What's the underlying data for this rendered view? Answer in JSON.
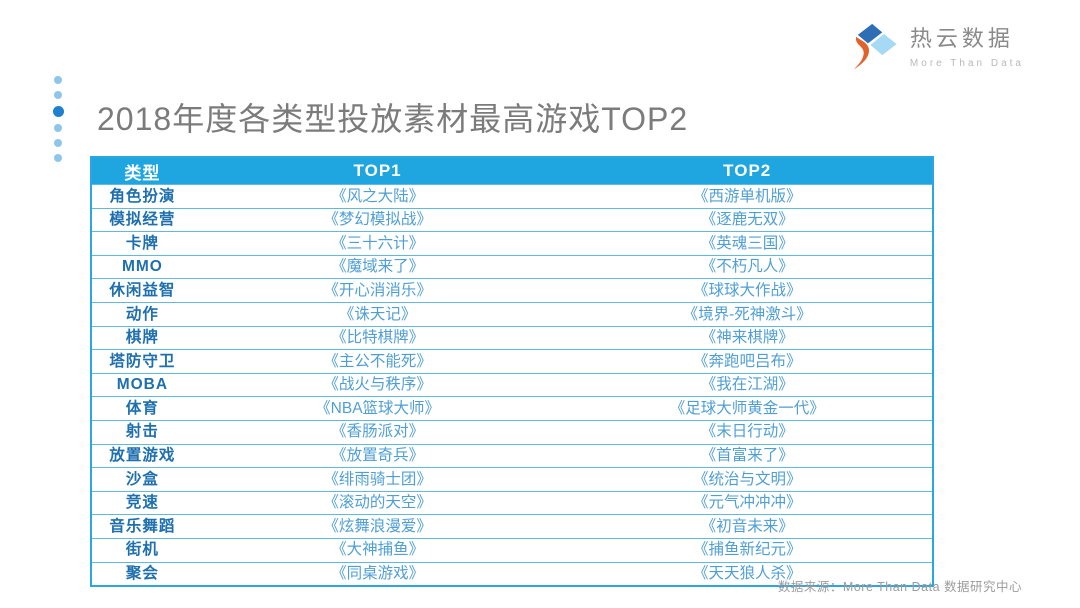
{
  "logo": {
    "name": "热云数据",
    "tagline": "More Than Data"
  },
  "title": "2018年度各类型投放素材最高游戏TOP2",
  "table": {
    "headers": [
      "类型",
      "TOP1",
      "TOP2"
    ],
    "rows": [
      [
        "角色扮演",
        "《风之大陆》",
        "《西游单机版》"
      ],
      [
        "模拟经营",
        "《梦幻模拟战》",
        "《逐鹿无双》"
      ],
      [
        "卡牌",
        "《三十六计》",
        "《英魂三国》"
      ],
      [
        "MMO",
        "《魔域来了》",
        "《不朽凡人》"
      ],
      [
        "休闲益智",
        "《开心消消乐》",
        "《球球大作战》"
      ],
      [
        "动作",
        "《诛天记》",
        "《境界-死神激斗》"
      ],
      [
        "棋牌",
        "《比特棋牌》",
        "《神来棋牌》"
      ],
      [
        "塔防守卫",
        "《主公不能死》",
        "《奔跑吧吕布》"
      ],
      [
        "MOBA",
        "《战火与秩序》",
        "《我在江湖》"
      ],
      [
        "体育",
        "《NBA篮球大师》",
        "《足球大师黄金一代》"
      ],
      [
        "射击",
        "《香肠派对》",
        "《末日行动》"
      ],
      [
        "放置游戏",
        "《放置奇兵》",
        "《首富来了》"
      ],
      [
        "沙盒",
        "《绯雨骑士团》",
        "《统治与文明》"
      ],
      [
        "竞速",
        "《滚动的天空》",
        "《元气冲冲冲》"
      ],
      [
        "音乐舞蹈",
        "《炫舞浪漫爱》",
        "《初音未来》"
      ],
      [
        "街机",
        "《大神捕鱼》",
        "《捕鱼新纪元》"
      ],
      [
        "聚会",
        "《同桌游戏》",
        "《天天狼人杀》"
      ]
    ]
  },
  "footer": {
    "source": "数据来源：More Than Data 数据研究中心"
  },
  "colors": {
    "header_bg": "#1fa6e0",
    "table_border": "#2aa7de",
    "row_line": "#5fb8e6",
    "type_text": "#1e6fae",
    "game_text": "#4f9fd6",
    "title_text": "#7b7b7b",
    "dot": "#8ec6ea",
    "accent_dot": "#1d80d0",
    "logo_dark_blue": "#2d6eb5",
    "logo_light_blue": "#a6d9f3",
    "logo_orange": "#e2622b"
  }
}
